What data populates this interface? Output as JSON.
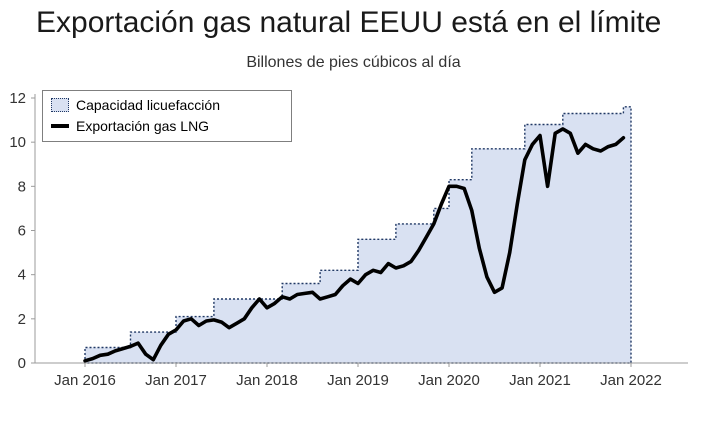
{
  "chart": {
    "title": "Exportación gas natural EEUU está en el límite",
    "subtitle": "Billones de pies cúbicos al día"
  },
  "legend": {
    "items": [
      {
        "label": "Capacidad licuefacción",
        "swatch": "dotted-area"
      },
      {
        "label": "Exportación gas LNG",
        "swatch": "thick-black-line"
      }
    ]
  },
  "colors": {
    "capacity_fill": "#d9e1f2",
    "capacity_border": "#203864",
    "export_line": "#000000",
    "axis": "#9b9b9b",
    "tick_text": "#333333"
  },
  "chart_data": {
    "type": "line",
    "title": "Exportación gas natural EEUU está en el límite",
    "subtitle": "Billones de pies cúbicos al día",
    "xlabel": "",
    "ylabel": "Billones de pies cúbicos al día",
    "ylim": [
      0,
      12
    ],
    "y_ticks": [
      0,
      2,
      4,
      6,
      8,
      10,
      12
    ],
    "x_unit": "months since Jan 2016",
    "x_ticks": [
      0,
      12,
      24,
      36,
      48,
      60,
      72
    ],
    "x_tick_labels": [
      "Jan 2016",
      "Jan 2017",
      "Jan 2018",
      "Jan 2019",
      "Jan 2020",
      "Jan 2021",
      "Jan 2022"
    ],
    "grid": false,
    "legend_position": "top-left",
    "series": [
      {
        "name": "Capacidad licuefacción",
        "type": "step-area",
        "fill": "#d9e1f2",
        "border": "#203864",
        "values": [
          0.7,
          0.7,
          0.7,
          0.7,
          0.7,
          0.7,
          1.4,
          1.4,
          1.4,
          1.4,
          1.4,
          1.4,
          2.1,
          2.1,
          2.1,
          2.1,
          2.1,
          2.9,
          2.9,
          2.9,
          2.9,
          2.9,
          2.9,
          2.9,
          2.9,
          2.9,
          3.6,
          3.6,
          3.6,
          3.6,
          3.6,
          4.2,
          4.2,
          4.2,
          4.2,
          4.2,
          5.6,
          5.6,
          5.6,
          5.6,
          5.6,
          6.3,
          6.3,
          6.3,
          6.3,
          6.3,
          7.0,
          7.0,
          8.3,
          8.3,
          8.3,
          9.7,
          9.7,
          9.7,
          9.7,
          9.7,
          9.7,
          9.7,
          10.8,
          10.8,
          10.8,
          10.8,
          10.8,
          11.3,
          11.3,
          11.3,
          11.3,
          11.3,
          11.3,
          11.3,
          11.3,
          11.6,
          11.6
        ]
      },
      {
        "name": "Exportación gas LNG",
        "type": "line",
        "color": "#000000",
        "values": [
          0.1,
          0.2,
          0.35,
          0.4,
          0.55,
          0.65,
          0.75,
          0.9,
          0.4,
          0.15,
          0.8,
          1.3,
          1.5,
          1.9,
          2.0,
          1.7,
          1.9,
          1.95,
          1.85,
          1.6,
          1.8,
          2.0,
          2.5,
          2.9,
          2.5,
          2.7,
          3.0,
          2.9,
          3.1,
          3.15,
          3.2,
          2.9,
          3.0,
          3.1,
          3.5,
          3.8,
          3.6,
          4.0,
          4.2,
          4.1,
          4.5,
          4.3,
          4.4,
          4.6,
          5.1,
          5.7,
          6.3,
          7.2,
          8.0,
          8.0,
          7.9,
          6.9,
          5.2,
          3.9,
          3.2,
          3.4,
          5.0,
          7.2,
          9.2,
          9.9,
          10.3,
          8.0,
          10.4,
          10.6,
          10.4,
          9.5,
          9.9,
          9.7,
          9.6,
          9.8,
          9.9,
          10.2
        ]
      }
    ]
  }
}
